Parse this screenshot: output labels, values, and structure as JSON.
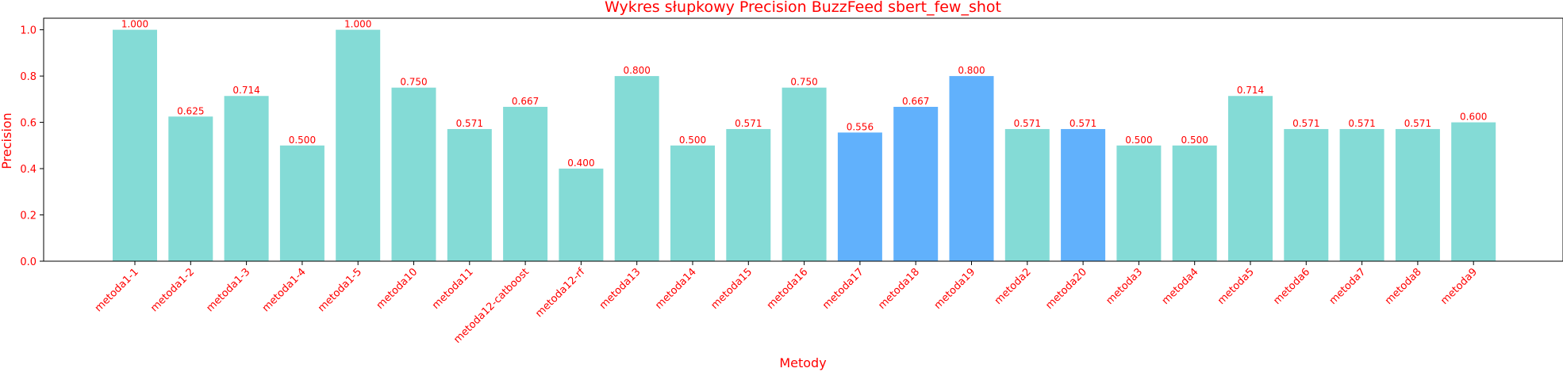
{
  "chart_data": {
    "type": "bar",
    "title": "Wykres słupkowy Precision BuzzFeed sbert_few_shot",
    "xlabel": "Metody",
    "ylabel": "Precision",
    "ylim": [
      0,
      1.05
    ],
    "yticks": [
      "0.0",
      "0.2",
      "0.4",
      "0.6",
      "0.8",
      "1.0"
    ],
    "ytick_values": [
      0,
      0.2,
      0.4,
      0.6,
      0.8,
      1.0
    ],
    "categories": [
      "metoda1-1",
      "metoda1-2",
      "metoda1-3",
      "metoda1-4",
      "metoda1-5",
      "metoda10",
      "metoda11",
      "metoda12-catboost",
      "metoda12-rf",
      "metoda13",
      "metoda14",
      "metoda15",
      "metoda16",
      "metoda17",
      "metoda18",
      "metoda19",
      "metoda2",
      "metoda20",
      "metoda3",
      "metoda4",
      "metoda5",
      "metoda6",
      "metoda7",
      "metoda8",
      "metoda9"
    ],
    "values": [
      1.0,
      0.625,
      0.714,
      0.5,
      1.0,
      0.75,
      0.571,
      0.667,
      0.4,
      0.8,
      0.5,
      0.571,
      0.75,
      0.556,
      0.667,
      0.8,
      0.571,
      0.571,
      0.5,
      0.5,
      0.714,
      0.571,
      0.571,
      0.571,
      0.6
    ],
    "value_labels": [
      "1.000",
      "0.625",
      "0.714",
      "0.500",
      "1.000",
      "0.750",
      "0.571",
      "0.667",
      "0.400",
      "0.800",
      "0.500",
      "0.571",
      "0.750",
      "0.556",
      "0.667",
      "0.800",
      "0.571",
      "0.571",
      "0.500",
      "0.500",
      "0.714",
      "0.571",
      "0.571",
      "0.571",
      "0.600"
    ],
    "highlighted": [
      "metoda17",
      "metoda18",
      "metoda19",
      "metoda20"
    ],
    "colors": {
      "bar": "#84dbd6",
      "highlight": "#61b1fc",
      "text": "#ff0000",
      "axis": "#000000"
    },
    "grid": false
  }
}
